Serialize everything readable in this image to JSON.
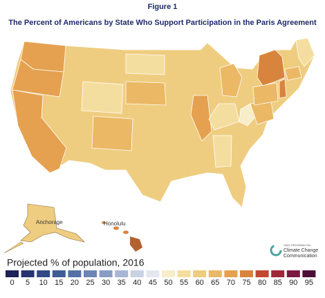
{
  "header": {
    "figure": "Figure 1",
    "title": "The Percent of Americans by State Who Support Participation in the Paris Agreement"
  },
  "map": {
    "labels": [
      "Anchorage",
      "Honolulu"
    ]
  },
  "legend": {
    "title": "Projected % of population, 2016",
    "bins": [
      {
        "value": 0,
        "color": "#1c2157"
      },
      {
        "value": 5,
        "color": "#26346f"
      },
      {
        "value": 10,
        "color": "#2f4984"
      },
      {
        "value": 15,
        "color": "#3e5d96"
      },
      {
        "value": 20,
        "color": "#5470a6"
      },
      {
        "value": 25,
        "color": "#6d85b5"
      },
      {
        "value": 30,
        "color": "#8a9cc4"
      },
      {
        "value": 35,
        "color": "#a8b6d3"
      },
      {
        "value": 40,
        "color": "#c8d2e3"
      },
      {
        "value": 45,
        "color": "#e3e8f0"
      },
      {
        "value": 50,
        "color": "#f7edc8"
      },
      {
        "value": 55,
        "color": "#f4de9f"
      },
      {
        "value": 60,
        "color": "#efcd80"
      },
      {
        "value": 65,
        "color": "#ebb866"
      },
      {
        "value": 70,
        "color": "#e5a150"
      },
      {
        "value": 75,
        "color": "#d9843d"
      },
      {
        "value": 80,
        "color": "#c2472f"
      },
      {
        "value": 85,
        "color": "#a0263a"
      },
      {
        "value": 90,
        "color": "#7a1a40"
      },
      {
        "value": 95,
        "color": "#4a1038"
      }
    ]
  },
  "logo": {
    "line1": "YALE PROGRAM ON",
    "line2": "Climate Change",
    "line3": "Communication"
  }
}
